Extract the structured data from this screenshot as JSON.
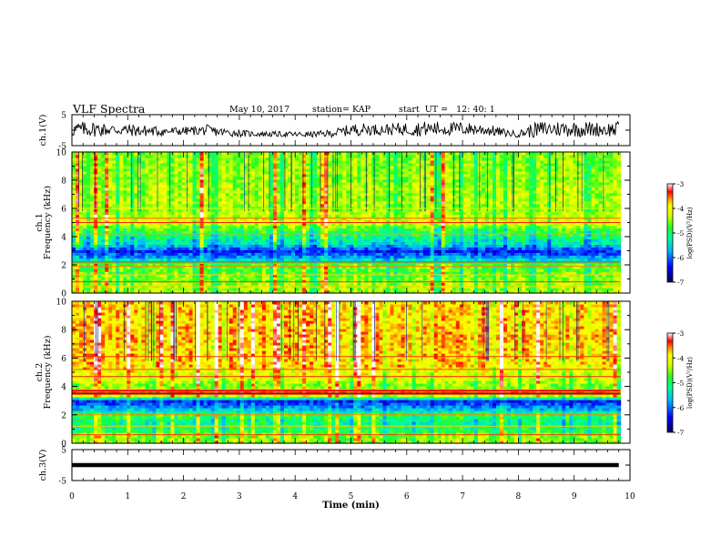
{
  "header": {
    "title": "VLF Spectra",
    "date": "May 10, 2017",
    "station": "station= KAP",
    "start": "start  UT =   12: 40: 1"
  },
  "chart_data": [
    {
      "type": "line",
      "panel": "ch1-waveform",
      "ylabel": "ch.1(V)",
      "ylim": [
        -5,
        5
      ],
      "yticks": [
        "5",
        "-5"
      ],
      "xlim": [
        0,
        10
      ],
      "x": [
        0,
        0.2,
        0.4,
        0.6,
        0.8,
        1.0,
        1.2,
        1.4,
        1.6,
        1.8,
        2.0,
        2.2,
        2.4,
        2.6,
        2.8,
        3.0,
        3.2,
        3.4,
        3.6,
        3.8,
        4.0,
        4.2,
        4.4,
        4.6,
        4.8,
        5.0,
        5.2,
        5.4,
        5.6,
        5.8,
        6.0,
        6.2,
        6.4,
        6.6,
        6.8,
        7.0,
        7.2,
        7.4,
        7.6,
        7.8,
        8.0,
        8.2,
        8.4,
        8.6,
        8.8,
        9.0,
        9.2,
        9.4,
        9.6,
        9.8
      ],
      "envelope": [
        2.5,
        2.5,
        2.5,
        2.2,
        2.0,
        2.0,
        2.0,
        1.8,
        1.6,
        1.5,
        1.4,
        1.4,
        1.8,
        1.5,
        1.3,
        1.2,
        1.0,
        0.9,
        0.9,
        0.9,
        0.9,
        0.9,
        1.0,
        1.2,
        1.5,
        2.0,
        2.0,
        1.8,
        1.8,
        2.0,
        2.2,
        2.4,
        2.4,
        2.4,
        2.2,
        2.2,
        2.0,
        2.0,
        1.6,
        1.2,
        1.0,
        2.2,
        2.6,
        2.6,
        2.6,
        2.6,
        2.6,
        2.4,
        2.4,
        2.6
      ],
      "baseline": [
        0.2,
        0.3,
        0.3,
        0.2,
        0.1,
        0.0,
        -0.2,
        -0.3,
        -0.4,
        -0.4,
        -0.3,
        -0.2,
        0.0,
        -0.5,
        -0.8,
        -1.0,
        -1.2,
        -1.2,
        -1.3,
        -1.3,
        -1.4,
        -1.4,
        -1.3,
        -1.1,
        -0.6,
        0.1,
        0.3,
        0.2,
        0.2,
        0.3,
        0.4,
        0.4,
        0.5,
        0.5,
        0.4,
        0.5,
        0.3,
        0.2,
        -0.4,
        -1.0,
        -1.3,
        -0.3,
        0.3,
        0.4,
        0.4,
        0.4,
        0.3,
        0.3,
        0.2,
        0.3
      ]
    },
    {
      "type": "heatmap",
      "panel": "ch1-spectrogram",
      "ylabel": "ch.1\nFrequency (kHz)",
      "ylim": [
        0,
        10
      ],
      "xlim": [
        0,
        10
      ],
      "yticks": [
        "0",
        "2",
        "4",
        "6",
        "8",
        "10"
      ],
      "colorbar": {
        "label": "log(PSD)(V²/Hz)",
        "ticks": [
          "-3",
          "-4",
          "-5",
          "-6",
          "-7"
        ],
        "range": [
          -7,
          -3
        ]
      },
      "frequency_kHz": [
        0.5,
        1.0,
        1.5,
        2.0,
        2.5,
        3.0,
        3.5,
        4.0,
        4.5,
        5.0,
        5.5,
        6.0,
        6.5,
        7.0,
        7.5,
        8.0,
        8.5,
        9.0,
        9.5,
        10.0
      ],
      "mean_log_psd": [
        -4.4,
        -4.5,
        -4.7,
        -4.6,
        -5.7,
        -6.3,
        -5.4,
        -5.1,
        -4.8,
        -4.1,
        -4.3,
        -4.4,
        -4.3,
        -4.4,
        -4.3,
        -4.5,
        -4.4,
        -4.5,
        -4.5,
        -4.5
      ]
    },
    {
      "type": "heatmap",
      "panel": "ch2-spectrogram",
      "ylabel": "ch.2\nFrequency (kHz)",
      "ylim": [
        0,
        10
      ],
      "xlim": [
        0,
        10
      ],
      "yticks": [
        "0",
        "2",
        "4",
        "6",
        "8",
        "10"
      ],
      "colorbar": {
        "label": "log(PSD)(V²/Hz)",
        "ticks": [
          "-3",
          "-4",
          "-5",
          "-6",
          "-7"
        ],
        "range": [
          -7,
          -3
        ]
      },
      "frequency_kHz": [
        0.5,
        1.0,
        1.5,
        2.0,
        2.5,
        3.0,
        3.5,
        4.0,
        4.5,
        5.0,
        5.5,
        6.0,
        6.5,
        7.0,
        7.5,
        8.0,
        8.5,
        9.0,
        9.5,
        10.0
      ],
      "mean_log_psd": [
        -4.5,
        -5.0,
        -5.2,
        -4.8,
        -5.8,
        -6.3,
        -3.4,
        -4.6,
        -4.2,
        -4.1,
        -3.8,
        -3.8,
        -3.8,
        -3.8,
        -3.7,
        -3.7,
        -3.8,
        -3.8,
        -3.8,
        -3.8
      ]
    },
    {
      "type": "line",
      "panel": "ch3-waveform",
      "ylabel": "ch.3(V)",
      "ylim": [
        -5,
        5
      ],
      "yticks": [
        "5",
        "-5"
      ],
      "xlim": [
        0,
        10
      ],
      "x": [
        0,
        9.8
      ],
      "y": [
        0,
        0
      ],
      "xlabel": "Time (min)",
      "xticks": [
        "0",
        "1",
        "2",
        "3",
        "4",
        "5",
        "6",
        "7",
        "8",
        "9",
        "10"
      ]
    }
  ],
  "colors": {
    "frame": "#000000",
    "colormap": [
      "#00007a",
      "#0000ff",
      "#0070ff",
      "#00e0ff",
      "#00ff90",
      "#40ff40",
      "#b0ff20",
      "#ffff00",
      "#ffa000",
      "#ff3000",
      "#ff0000",
      "#ffffff"
    ]
  }
}
